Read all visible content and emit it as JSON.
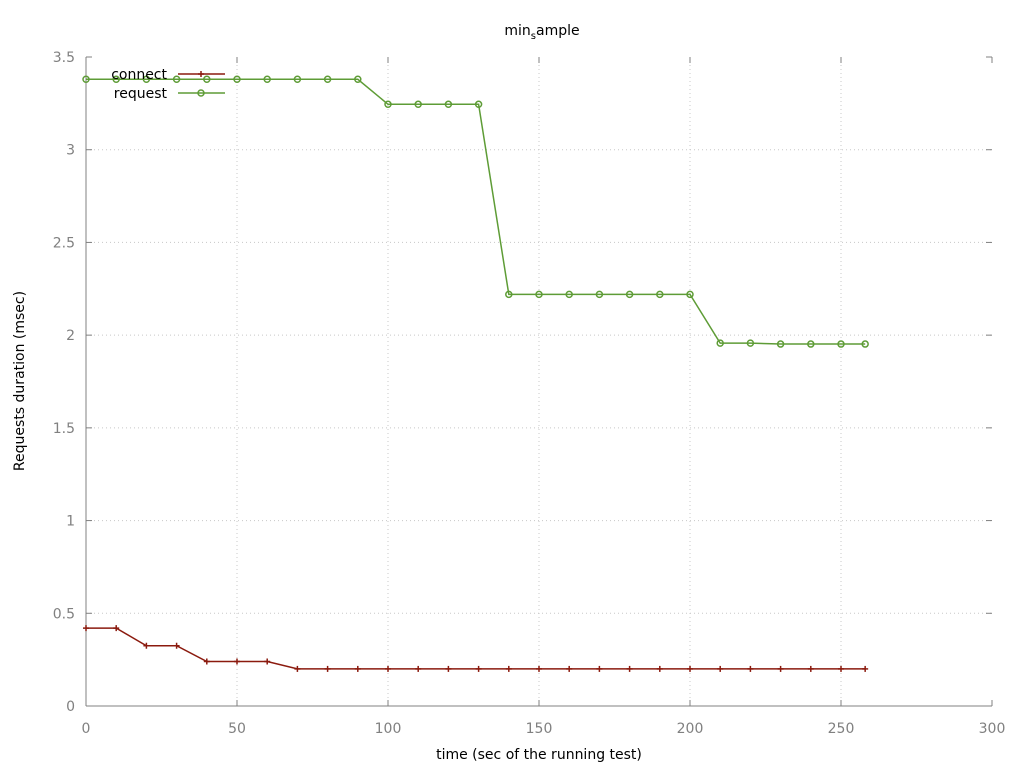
{
  "chart_data": {
    "type": "line",
    "title_main": "min",
    "title_sub": "s",
    "title_tail": "ample",
    "xlabel": "time (sec of the running test)",
    "ylabel": "Requests duration (msec)",
    "xlim": [
      0,
      300
    ],
    "ylim": [
      0,
      3.5
    ],
    "xticks": [
      "0",
      "50",
      "100",
      "150",
      "200",
      "250",
      "300"
    ],
    "yticks": [
      "0",
      "0.5",
      "1",
      "1.5",
      "2",
      "2.5",
      "3",
      "3.5"
    ],
    "grid": true,
    "legend_position": "top-left",
    "x": [
      0,
      10,
      20,
      30,
      40,
      50,
      60,
      70,
      80,
      90,
      100,
      110,
      120,
      130,
      140,
      150,
      160,
      170,
      180,
      190,
      200,
      210,
      220,
      230,
      240,
      250,
      258
    ],
    "series": [
      {
        "name": "connect",
        "color": "#8b1a0e",
        "marker": "plus",
        "values": [
          0.42,
          0.42,
          0.325,
          0.325,
          0.24,
          0.24,
          0.24,
          0.2,
          0.2,
          0.2,
          0.2,
          0.2,
          0.2,
          0.2,
          0.2,
          0.2,
          0.2,
          0.2,
          0.2,
          0.2,
          0.2,
          0.2,
          0.2,
          0.2,
          0.2,
          0.2,
          0.2
        ]
      },
      {
        "name": "request",
        "color": "#5e9c36",
        "marker": "circle",
        "values": [
          3.38,
          3.38,
          3.38,
          3.38,
          3.38,
          3.38,
          3.38,
          3.38,
          3.38,
          3.38,
          3.245,
          3.245,
          3.245,
          3.245,
          2.22,
          2.22,
          2.22,
          2.22,
          2.22,
          2.22,
          2.22,
          1.957,
          1.957,
          1.952,
          1.952,
          1.952,
          1.952
        ]
      }
    ]
  }
}
